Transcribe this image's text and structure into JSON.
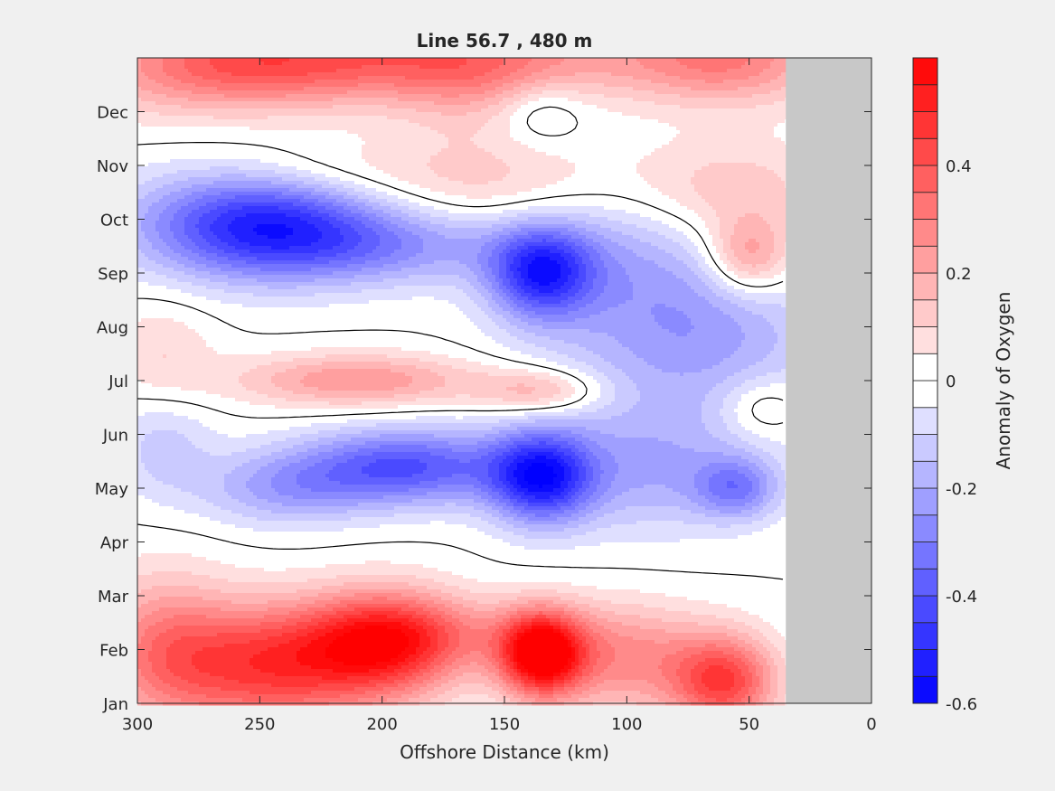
{
  "chart_data": {
    "type": "heatmap",
    "title": "Line 56.7 , 480 m",
    "xlabel": "Offshore Distance (km)",
    "ylabel": "",
    "x_ticks": [
      "300",
      "250",
      "200",
      "150",
      "100",
      "50",
      "0"
    ],
    "x_tick_values": [
      300,
      250,
      200,
      150,
      100,
      50,
      0
    ],
    "xlim": [
      300,
      0
    ],
    "y_ticks": [
      "Jan",
      "Feb",
      "Mar",
      "Apr",
      "May",
      "Jun",
      "Jul",
      "Aug",
      "Sep",
      "Oct",
      "Nov",
      "Dec"
    ],
    "ylim_months": [
      0,
      12
    ],
    "data_extent_km": [
      300,
      35
    ],
    "no_data_color": "#c8c8c8",
    "colorbar": {
      "label": "Anomaly of Oxygen",
      "ticks": [
        "0.4",
        "0.2",
        "0",
        "-0.2",
        "-0.4",
        "-0.6"
      ],
      "tick_values": [
        0.4,
        0.2,
        0,
        -0.2,
        -0.4,
        -0.6
      ],
      "range": [
        -0.6,
        0.6
      ],
      "step": 0.05,
      "low_color": "#0000ff",
      "zero_color": "#ffffff",
      "high_color": "#ff0000"
    },
    "contour_level": 0,
    "features": [
      {
        "x": 135,
        "y": 0.9,
        "v": 0.62,
        "sx": 12,
        "sy": 0.55
      },
      {
        "x": 245,
        "y": 0.7,
        "v": 0.45,
        "sx": 30,
        "sy": 0.8
      },
      {
        "x": 198,
        "y": 1.1,
        "v": 0.44,
        "sx": 22,
        "sy": 0.7
      },
      {
        "x": 60,
        "y": 0.4,
        "v": 0.42,
        "sx": 15,
        "sy": 0.6
      },
      {
        "x": 290,
        "y": 1.0,
        "v": 0.25,
        "sx": 20,
        "sy": 1.0
      },
      {
        "x": 100,
        "y": 0.8,
        "v": 0.25,
        "sx": 25,
        "sy": 0.7
      },
      {
        "x": 170,
        "y": 1.3,
        "v": 0.15,
        "sx": 40,
        "sy": 0.5
      },
      {
        "x": 250,
        "y": 12.0,
        "v": 0.35,
        "sx": 40,
        "sy": 0.6
      },
      {
        "x": 175,
        "y": 12.0,
        "v": 0.25,
        "sx": 40,
        "sy": 0.6
      },
      {
        "x": 60,
        "y": 12.0,
        "v": 0.3,
        "sx": 30,
        "sy": 0.6
      },
      {
        "x": 130,
        "y": 12.0,
        "v": 0.1,
        "sx": 40,
        "sy": 0.5
      },
      {
        "x": 285,
        "y": 11.6,
        "v": 0.1,
        "sx": 40,
        "sy": 0.6
      },
      {
        "x": 165,
        "y": 11.3,
        "v": 0.08,
        "sx": 20,
        "sy": 0.7
      },
      {
        "x": 250,
        "y": 8.9,
        "v": -0.5,
        "sx": 35,
        "sy": 0.7
      },
      {
        "x": 195,
        "y": 8.5,
        "v": -0.2,
        "sx": 40,
        "sy": 0.5
      },
      {
        "x": 135,
        "y": 8.0,
        "v": -0.45,
        "sx": 15,
        "sy": 0.6
      },
      {
        "x": 100,
        "y": 8.3,
        "v": -0.15,
        "sx": 30,
        "sy": 1.0
      },
      {
        "x": 190,
        "y": 4.4,
        "v": -0.4,
        "sx": 30,
        "sy": 0.5
      },
      {
        "x": 135,
        "y": 4.2,
        "v": -0.5,
        "sx": 15,
        "sy": 0.6
      },
      {
        "x": 240,
        "y": 4.0,
        "v": -0.2,
        "sx": 25,
        "sy": 0.5
      },
      {
        "x": 90,
        "y": 4.3,
        "v": -0.18,
        "sx": 30,
        "sy": 0.8
      },
      {
        "x": 55,
        "y": 4.0,
        "v": -0.25,
        "sx": 12,
        "sy": 0.4
      },
      {
        "x": 290,
        "y": 4.8,
        "v": -0.12,
        "sx": 15,
        "sy": 0.7
      },
      {
        "x": 80,
        "y": 6.5,
        "v": -0.15,
        "sx": 40,
        "sy": 1.2
      },
      {
        "x": 60,
        "y": 7.0,
        "v": -0.08,
        "sx": 30,
        "sy": 0.8
      },
      {
        "x": 135,
        "y": 11.0,
        "v": -0.1,
        "sx": 12,
        "sy": 0.4
      },
      {
        "x": 210,
        "y": 6.0,
        "v": 0.25,
        "sx": 35,
        "sy": 0.35
      },
      {
        "x": 290,
        "y": 6.5,
        "v": 0.1,
        "sx": 15,
        "sy": 0.7
      },
      {
        "x": 135,
        "y": 5.8,
        "v": 0.2,
        "sx": 18,
        "sy": 0.3
      },
      {
        "x": 45,
        "y": 5.5,
        "v": 0.12,
        "sx": 12,
        "sy": 0.4
      },
      {
        "x": 50,
        "y": 8.3,
        "v": 0.25,
        "sx": 12,
        "sy": 0.5
      },
      {
        "x": 60,
        "y": 9.5,
        "v": 0.15,
        "sx": 30,
        "sy": 0.7
      },
      {
        "x": 160,
        "y": 9.7,
        "v": 0.12,
        "sx": 40,
        "sy": 0.6
      },
      {
        "x": 230,
        "y": 9.9,
        "v": 0.08,
        "sx": 30,
        "sy": 0.4
      }
    ]
  }
}
